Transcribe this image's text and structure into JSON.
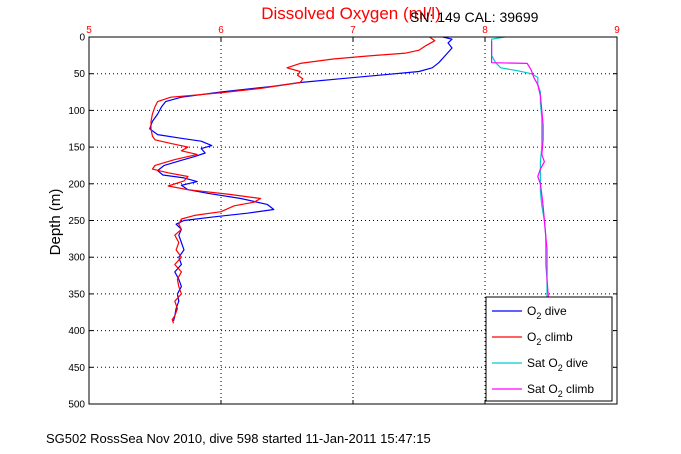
{
  "chart_data": {
    "type": "line",
    "title": "Dissolved Oxygen (ml/l)",
    "sensor_info": "SN: 149  CAL: 39699",
    "ylabel": "Depth (m)",
    "footer": "SG502 RossSea Nov 2010, dive 598 started 11-Jan-2011 15:47:15",
    "xlim": [
      5,
      9
    ],
    "ylim": [
      0,
      500
    ],
    "y_reversed": true,
    "x_ticks": [
      "5",
      "6",
      "7",
      "8",
      "9"
    ],
    "y_ticks": [
      "0",
      "50",
      "100",
      "150",
      "200",
      "250",
      "300",
      "350",
      "400",
      "450",
      "500"
    ],
    "grid": true,
    "legend_placement": "bottom-right",
    "colors": {
      "dive": "#0000ff",
      "climb": "#ff0000",
      "sat_dive": "#00cccc",
      "sat_climb": "#ff00ff",
      "title": "#ff0000",
      "x_ticks": "#ff0000"
    },
    "series": [
      {
        "name": "O2 dive",
        "legend_main": "O",
        "legend_sub": "2",
        "legend_rest": " dive",
        "color_key": "dive",
        "points": [
          [
            7.68,
            0
          ],
          [
            7.75,
            3
          ],
          [
            7.72,
            8
          ],
          [
            7.75,
            15
          ],
          [
            7.7,
            25
          ],
          [
            7.65,
            35
          ],
          [
            7.6,
            42
          ],
          [
            7.5,
            47
          ],
          [
            7.2,
            52
          ],
          [
            6.9,
            57
          ],
          [
            6.6,
            62
          ],
          [
            6.4,
            67
          ],
          [
            6.0,
            75
          ],
          [
            5.7,
            82
          ],
          [
            5.58,
            88
          ],
          [
            5.55,
            95
          ],
          [
            5.52,
            105
          ],
          [
            5.48,
            115
          ],
          [
            5.46,
            125
          ],
          [
            5.52,
            133
          ],
          [
            5.7,
            138
          ],
          [
            5.85,
            142
          ],
          [
            5.93,
            148
          ],
          [
            5.85,
            152
          ],
          [
            5.88,
            158
          ],
          [
            5.8,
            163
          ],
          [
            5.7,
            168
          ],
          [
            5.57,
            175
          ],
          [
            5.52,
            182
          ],
          [
            5.56,
            188
          ],
          [
            5.72,
            192
          ],
          [
            5.82,
            197
          ],
          [
            5.7,
            202
          ],
          [
            5.75,
            208
          ],
          [
            5.9,
            213
          ],
          [
            6.15,
            220
          ],
          [
            6.35,
            228
          ],
          [
            6.4,
            235
          ],
          [
            6.2,
            240
          ],
          [
            5.95,
            245
          ],
          [
            5.72,
            250
          ],
          [
            5.66,
            255
          ],
          [
            5.7,
            262
          ],
          [
            5.68,
            270
          ],
          [
            5.7,
            280
          ],
          [
            5.72,
            290
          ],
          [
            5.68,
            300
          ],
          [
            5.7,
            310
          ],
          [
            5.65,
            320
          ],
          [
            5.68,
            330
          ],
          [
            5.7,
            340
          ],
          [
            5.67,
            350
          ],
          [
            5.68,
            360
          ],
          [
            5.66,
            370
          ],
          [
            5.65,
            380
          ],
          [
            5.64,
            387
          ]
        ]
      },
      {
        "name": "O2 climb",
        "legend_main": "O",
        "legend_sub": "2",
        "legend_rest": " climb",
        "color_key": "climb",
        "points": [
          [
            7.58,
            0
          ],
          [
            7.62,
            5
          ],
          [
            7.55,
            12
          ],
          [
            7.5,
            18
          ],
          [
            7.4,
            22
          ],
          [
            7.1,
            26
          ],
          [
            6.85,
            30
          ],
          [
            6.6,
            36
          ],
          [
            6.5,
            42
          ],
          [
            6.6,
            47
          ],
          [
            6.58,
            52
          ],
          [
            6.62,
            57
          ],
          [
            6.6,
            62
          ],
          [
            6.3,
            70
          ],
          [
            6.0,
            76
          ],
          [
            5.62,
            82
          ],
          [
            5.52,
            88
          ],
          [
            5.5,
            95
          ],
          [
            5.48,
            105
          ],
          [
            5.47,
            115
          ],
          [
            5.47,
            125
          ],
          [
            5.48,
            135
          ],
          [
            5.5,
            140
          ],
          [
            5.62,
            145
          ],
          [
            5.75,
            150
          ],
          [
            5.7,
            155
          ],
          [
            5.82,
            160
          ],
          [
            5.65,
            167
          ],
          [
            5.5,
            175
          ],
          [
            5.48,
            180
          ],
          [
            5.6,
            185
          ],
          [
            5.75,
            190
          ],
          [
            5.72,
            196
          ],
          [
            5.6,
            203
          ],
          [
            5.75,
            208
          ],
          [
            6.05,
            214
          ],
          [
            6.3,
            220
          ],
          [
            6.25,
            225
          ],
          [
            6.1,
            230
          ],
          [
            6.0,
            238
          ],
          [
            5.8,
            243
          ],
          [
            5.7,
            248
          ],
          [
            5.68,
            255
          ],
          [
            5.7,
            262
          ],
          [
            5.65,
            270
          ],
          [
            5.68,
            280
          ],
          [
            5.66,
            290
          ],
          [
            5.7,
            300
          ],
          [
            5.65,
            310
          ],
          [
            5.7,
            320
          ],
          [
            5.67,
            330
          ],
          [
            5.68,
            340
          ],
          [
            5.7,
            350
          ],
          [
            5.65,
            360
          ],
          [
            5.67,
            370
          ],
          [
            5.65,
            380
          ],
          [
            5.63,
            385
          ],
          [
            5.64,
            390
          ]
        ]
      },
      {
        "name": "Sat O2 dive",
        "legend_main": "Sat O",
        "legend_sub": "2",
        "legend_rest": " dive",
        "color_key": "sat_dive",
        "points": [
          [
            8.15,
            0
          ],
          [
            8.05,
            3
          ],
          [
            8.05,
            15
          ],
          [
            8.05,
            25
          ],
          [
            8.08,
            35
          ],
          [
            8.12,
            42
          ],
          [
            8.25,
            46
          ],
          [
            8.35,
            50
          ],
          [
            8.4,
            55
          ],
          [
            8.4,
            65
          ],
          [
            8.42,
            75
          ],
          [
            8.42,
            90
          ],
          [
            8.43,
            110
          ],
          [
            8.43,
            130
          ],
          [
            8.43,
            150
          ],
          [
            8.42,
            170
          ],
          [
            8.42,
            190
          ],
          [
            8.42,
            210
          ],
          [
            8.43,
            230
          ],
          [
            8.45,
            250
          ],
          [
            8.46,
            270
          ],
          [
            8.46,
            290
          ],
          [
            8.46,
            310
          ],
          [
            8.47,
            330
          ],
          [
            8.47,
            355
          ]
        ]
      },
      {
        "name": "Sat O2 climb",
        "legend_main": "Sat O",
        "legend_sub": "2",
        "legend_rest": " climb",
        "color_key": "sat_climb",
        "points": [
          [
            8.05,
            5
          ],
          [
            8.05,
            15
          ],
          [
            8.05,
            25
          ],
          [
            8.05,
            35
          ],
          [
            8.32,
            36
          ],
          [
            8.35,
            45
          ],
          [
            8.37,
            55
          ],
          [
            8.4,
            65
          ],
          [
            8.42,
            80
          ],
          [
            8.43,
            100
          ],
          [
            8.44,
            120
          ],
          [
            8.44,
            140
          ],
          [
            8.43,
            160
          ],
          [
            8.45,
            170
          ],
          [
            8.42,
            180
          ],
          [
            8.4,
            190
          ],
          [
            8.42,
            200
          ],
          [
            8.43,
            215
          ],
          [
            8.44,
            230
          ],
          [
            8.45,
            250
          ],
          [
            8.46,
            270
          ],
          [
            8.47,
            290
          ],
          [
            8.47,
            310
          ],
          [
            8.47,
            330
          ],
          [
            8.48,
            355
          ]
        ]
      }
    ]
  }
}
